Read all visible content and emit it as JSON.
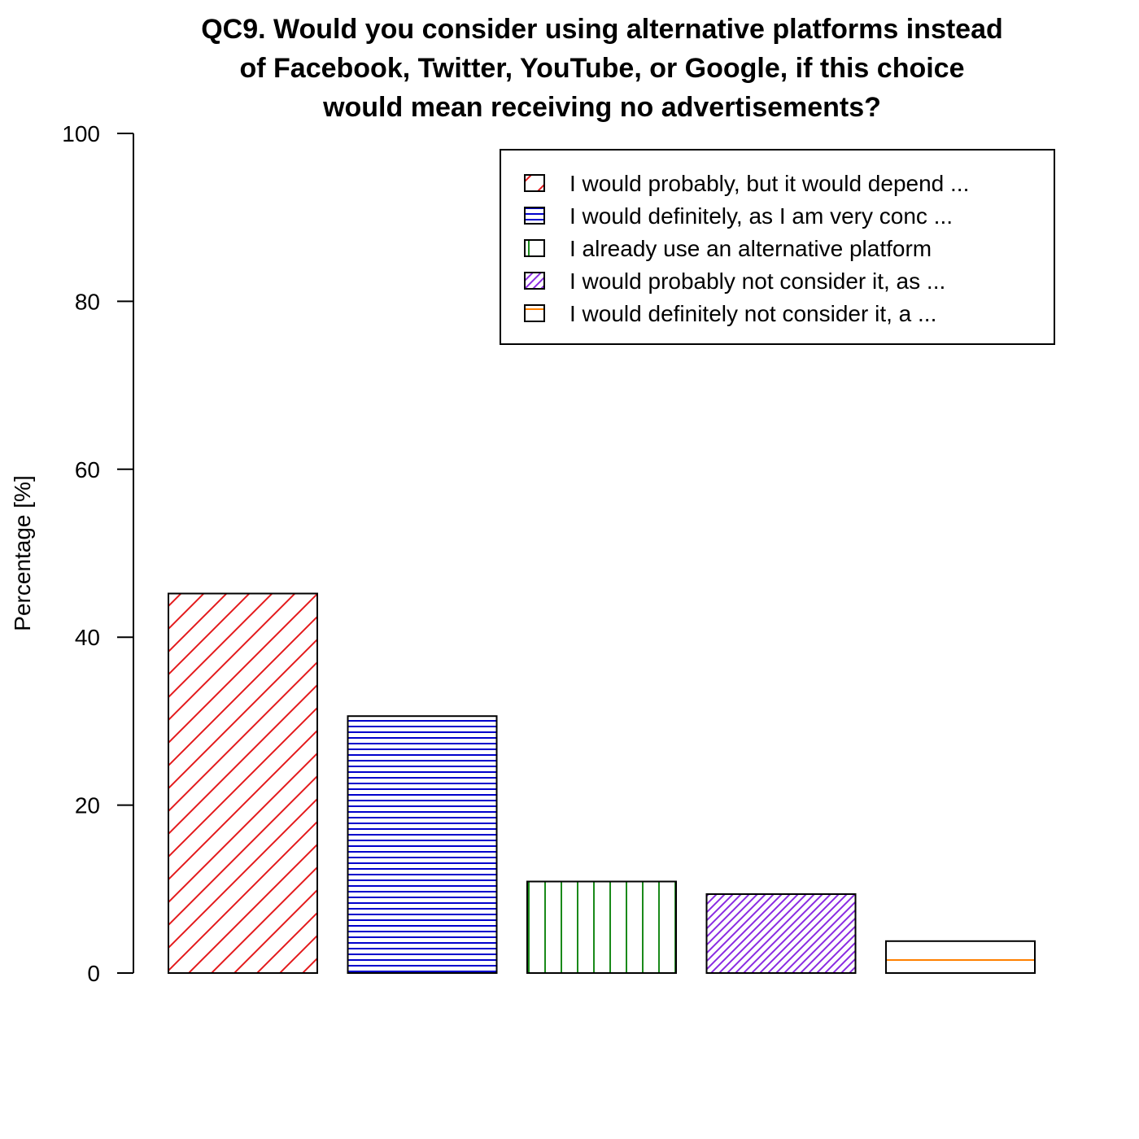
{
  "chart_data": {
    "type": "bar",
    "title_lines": [
      "QC9. Would you consider using alternative platforms instead",
      "of Facebook, Twitter, YouTube, or Google, if this choice",
      "would mean receiving no advertisements?"
    ],
    "xlabel": "",
    "ylabel": "Percentage [%]",
    "ylim": [
      0,
      100
    ],
    "yticks": [
      0,
      20,
      40,
      60,
      80,
      100
    ],
    "grid": false,
    "legend_position": "top-right",
    "categories": [
      "I would probably, but it would depend ...",
      "I would definitely, as I am very conc ...",
      "I already use an alternative platform",
      "I would probably not consider it, as  ...",
      "I would definitely not consider it, a ..."
    ],
    "values": [
      45.2,
      30.6,
      10.9,
      9.4,
      3.8
    ],
    "colors": [
      "#e41a1c",
      "#0000cc",
      "#1a8a1a",
      "#8a2be2",
      "#ff8000"
    ],
    "patterns": [
      "diagonal-sparse",
      "horizontal-dense",
      "vertical",
      "diagonal-dense",
      "horizontal-sparse"
    ]
  }
}
